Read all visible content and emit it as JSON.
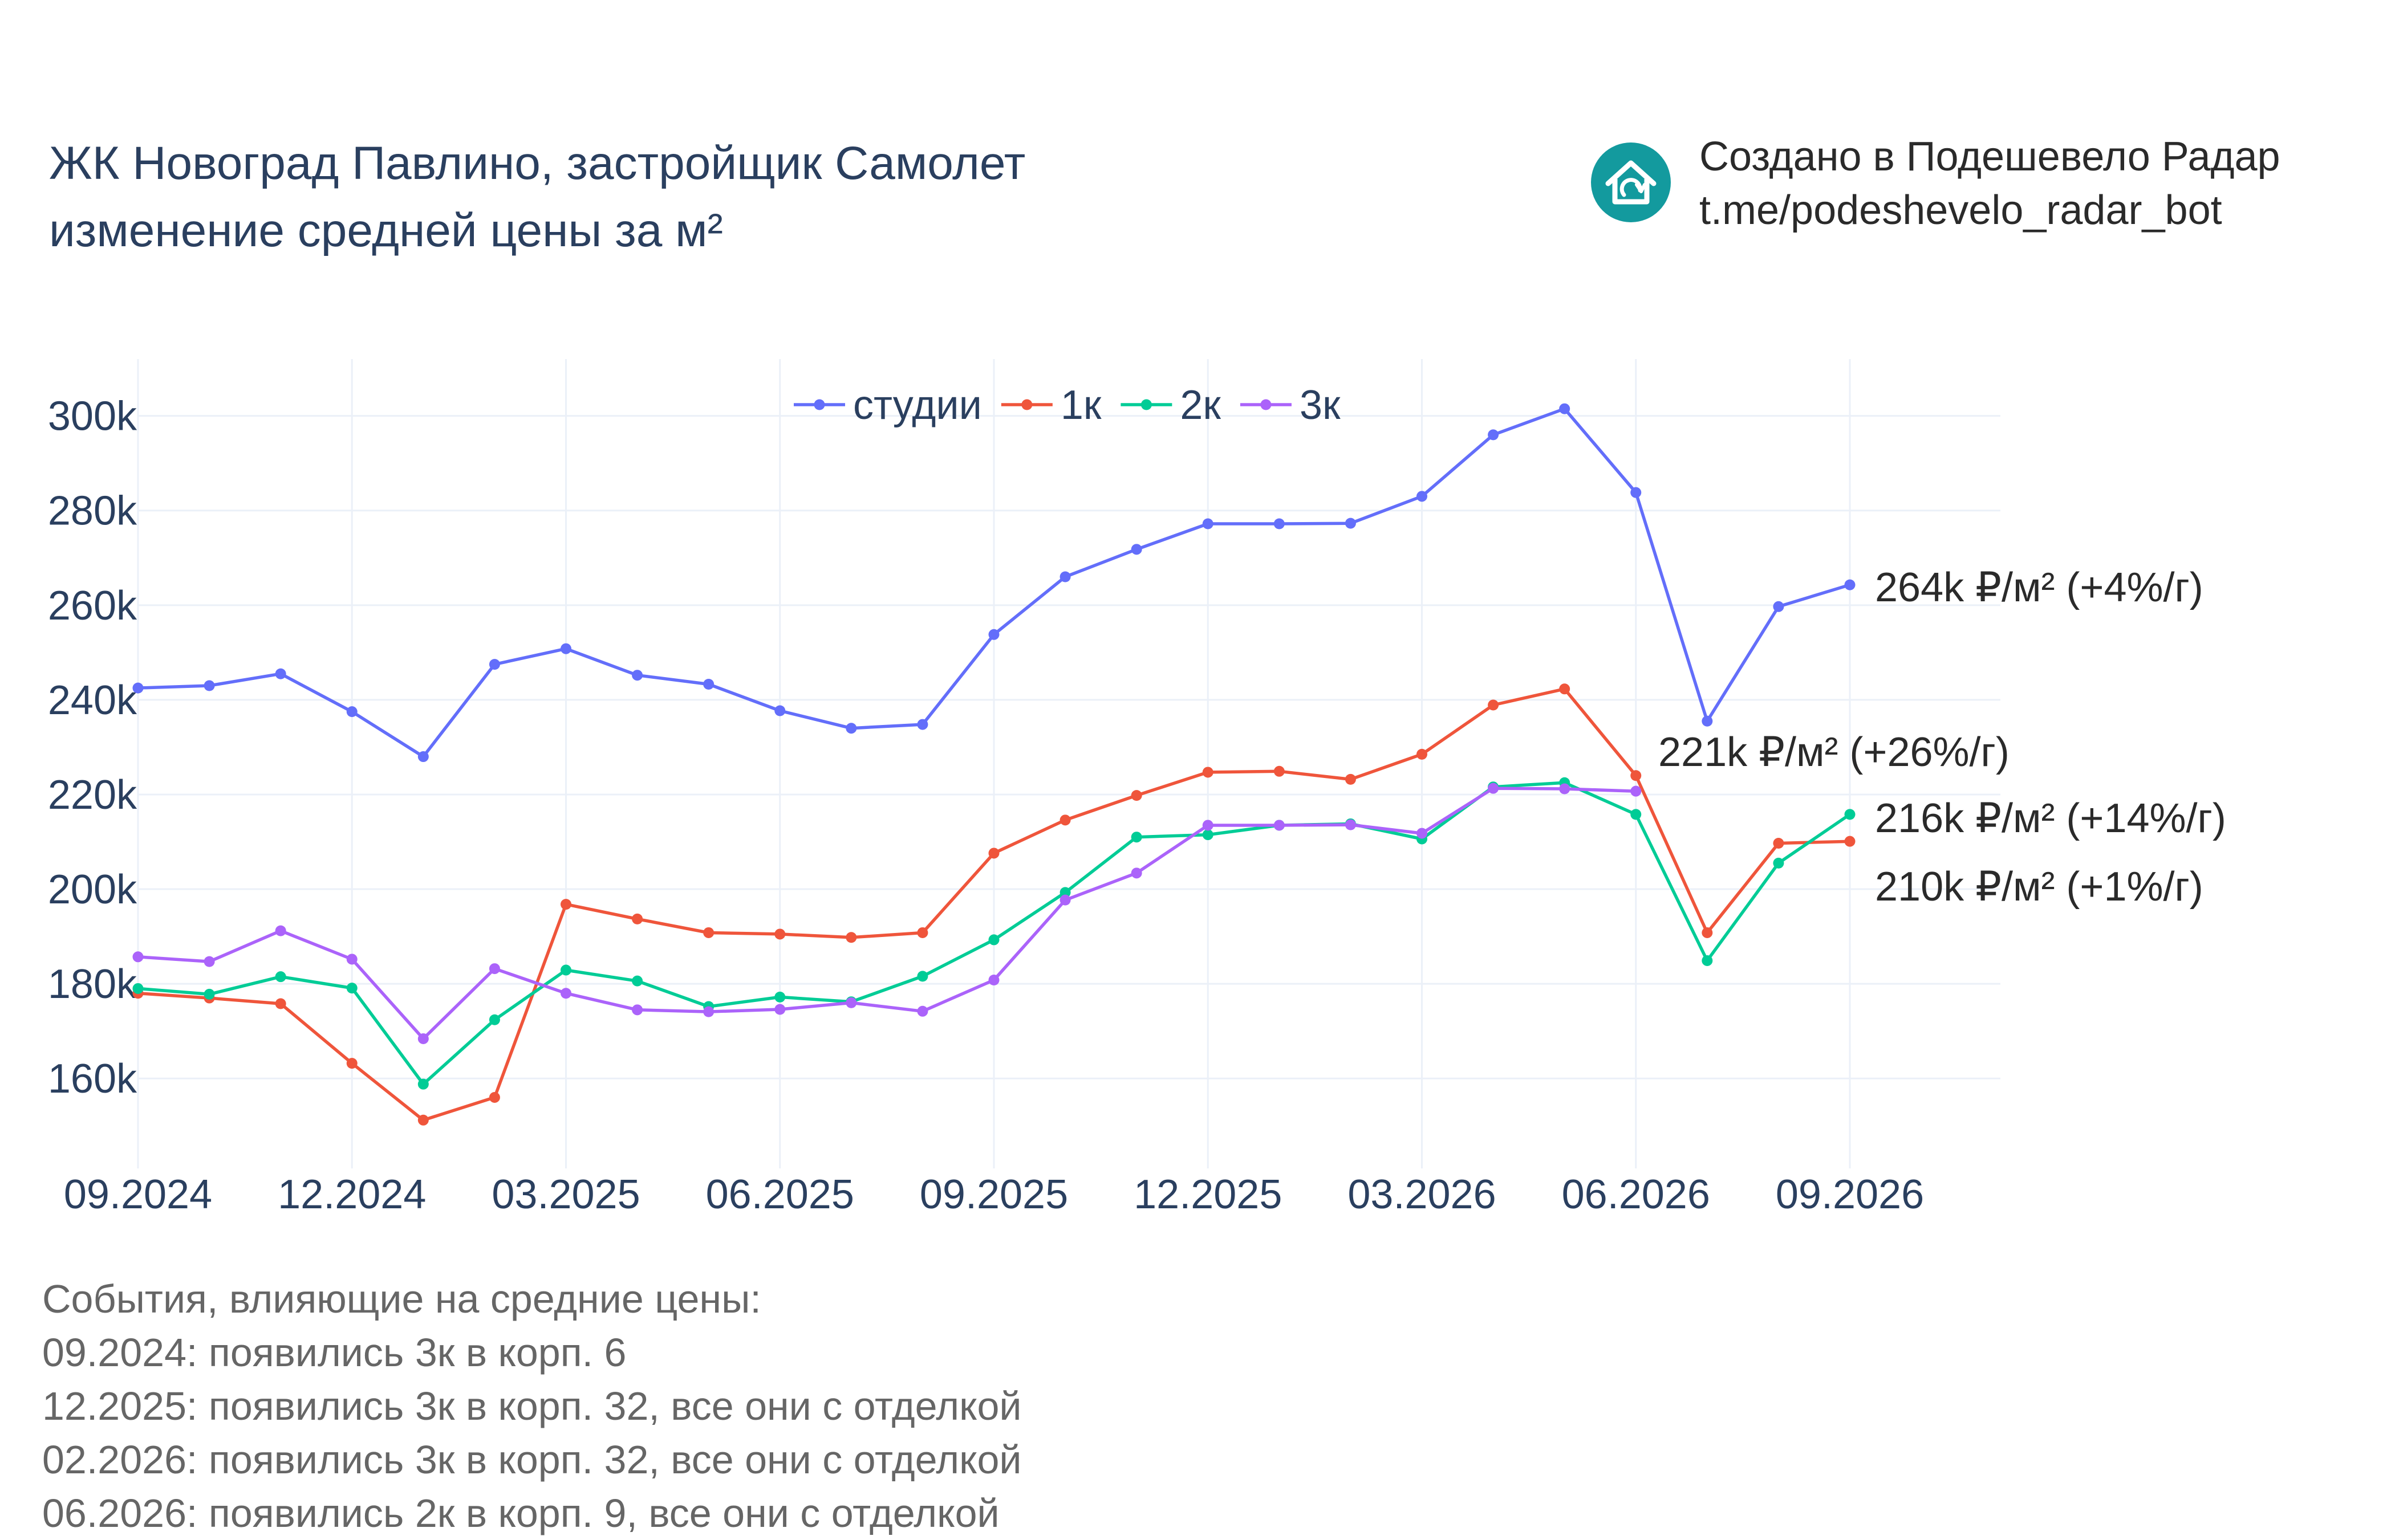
{
  "title": {
    "line1": "ЖК Новоград Павлино, застройщик Самолет",
    "line2": "изменение средней цены за м²"
  },
  "brand": {
    "line1": "Создано в Подешевело Радар",
    "line2": "t.me/podeshevelo_radar_bot",
    "icon": "house-icon",
    "color": "#139a9e"
  },
  "chart_data": {
    "type": "line",
    "x": [
      "09.2024",
      "10.2024",
      "11.2024",
      "12.2024",
      "01.2025",
      "02.2025",
      "03.2025",
      "04.2025",
      "05.2025",
      "06.2025",
      "07.2025",
      "08.2025",
      "09.2025",
      "10.2025",
      "11.2025",
      "12.2025",
      "01.2026",
      "02.2026",
      "03.2026",
      "04.2026",
      "05.2026",
      "06.2026",
      "07.2026",
      "08.2026",
      "09.2026"
    ],
    "x_ticks": [
      "09.2024",
      "12.2024",
      "03.2025",
      "06.2025",
      "09.2025",
      "12.2025",
      "03.2026",
      "06.2026",
      "09.2026"
    ],
    "y_ticks": [
      "160k",
      "180k",
      "200k",
      "220k",
      "240k",
      "260k",
      "280k",
      "300k"
    ],
    "y_tick_values": [
      160000,
      180000,
      200000,
      220000,
      240000,
      260000,
      280000,
      300000
    ],
    "ylim": [
      141000,
      312000
    ],
    "grid": true,
    "legend_position": "top-center",
    "series": [
      {
        "name": "студии",
        "color": "#636efa",
        "values": [
          242500,
          243000,
          245500,
          237500,
          228000,
          247500,
          250800,
          245200,
          243300,
          237700,
          234000,
          234800,
          253800,
          266000,
          271800,
          277200,
          277200,
          277300,
          283000,
          296000,
          301500,
          283800,
          235500,
          259700,
          264300
        ],
        "end_label": "264k ₽/м² (+4%/г)"
      },
      {
        "name": "1к",
        "color": "#ef553b",
        "values": [
          178000,
          177000,
          175800,
          163200,
          151200,
          156000,
          196800,
          193700,
          190800,
          190500,
          189800,
          190800,
          207600,
          214600,
          219800,
          224700,
          224900,
          223200,
          228500,
          238900,
          242300,
          224000,
          190800,
          209700,
          210100
        ],
        "end_label": "210k ₽/м² (+1%/г)"
      },
      {
        "name": "2к",
        "color": "#00cc96",
        "values": [
          179000,
          177800,
          181500,
          179100,
          158800,
          172400,
          182900,
          180600,
          175200,
          177200,
          176200,
          181600,
          189300,
          199300,
          211000,
          211500,
          213500,
          213800,
          210600,
          221600,
          222500,
          215800,
          184900,
          205500,
          215800
        ],
        "end_label": "216k ₽/м² (+14%/г)"
      },
      {
        "name": "3к",
        "color": "#ab63fa",
        "values": [
          185700,
          184700,
          191200,
          185200,
          168400,
          183200,
          178000,
          174500,
          174100,
          174600,
          176000,
          174200,
          180800,
          197700,
          203400,
          213500,
          213500,
          213600,
          211800,
          221300,
          221200,
          220700,
          null,
          null,
          null
        ],
        "end_label": "221k ₽/м² (+26%/г)"
      }
    ]
  },
  "events": {
    "header": "События, влияющие на средние цены:",
    "items": [
      "09.2024: появились 3к в корп. 6",
      "12.2025: появились 3к в корп. 32, все они с отделкой",
      "02.2026: появились 3к в корп. 32, все они с отделкой",
      "06.2026: появились 2к в корп. 9, все они с отделкой"
    ]
  }
}
